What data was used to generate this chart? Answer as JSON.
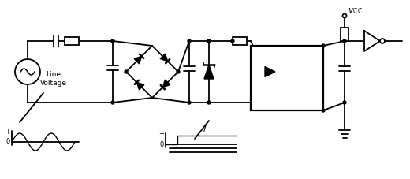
{
  "bg_color": "#ffffff",
  "line_color": "#000000",
  "lw": 1.3,
  "fig_width": 5.2,
  "fig_height": 2.27,
  "dpi": 100
}
